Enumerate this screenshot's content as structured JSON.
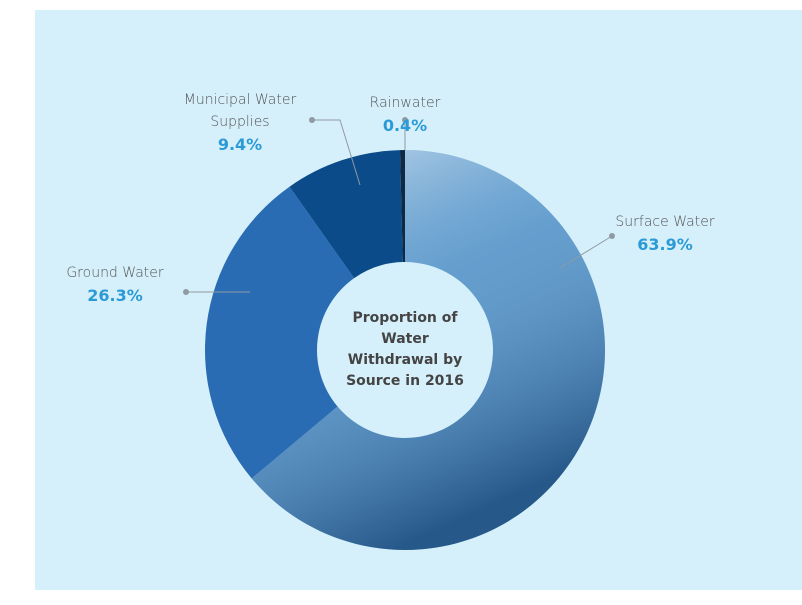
{
  "chart_data": {
    "type": "donut",
    "title": "Proportion of Water Withdrawal by Source in 2016",
    "categories": [
      "Surface Water",
      "Ground Water",
      "Municipal Water Supplies",
      "Rainwater"
    ],
    "values": [
      63.9,
      26.3,
      9.4,
      0.4
    ],
    "value_labels": [
      "63.9%",
      "26.3%",
      "9.4%",
      "0.4%"
    ],
    "colors": [
      "#5f9acb",
      "#2a6cb3",
      "#0b4b8a",
      "#0f2a44"
    ]
  }
}
